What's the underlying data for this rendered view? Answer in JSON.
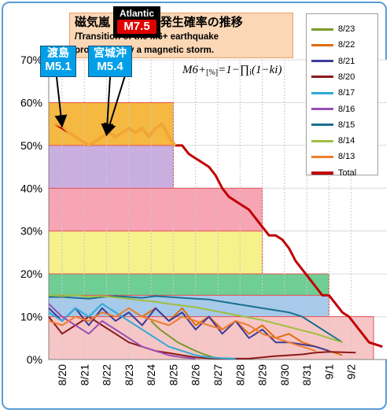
{
  "title": {
    "jp": "磁気嵐 M6+地震発生確率の推移",
    "en_line1": "/Transition of the M6+ earthquake",
    "en_line2": "probability by a magnetic storm."
  },
  "formula": {
    "lhs": "M6+",
    "unit": "[%]",
    "rhs": "=1−∏",
    "sub_i": "i",
    "tail": "(1−ki)"
  },
  "callouts": [
    {
      "label": "渡島",
      "magnitude": "M5.1",
      "date": "8/20",
      "y": 54.5
    },
    {
      "label": "宮城沖",
      "magnitude": "M5.4",
      "date": "8/22",
      "y": 52.5
    },
    {
      "label": "Atlantic",
      "magnitude": "M7.5",
      "date": "8/22",
      "y": 52.5
    }
  ],
  "chart_data": {
    "type": "line",
    "title": "磁気嵐 M6+地震発生確率の推移 /Transition of the M6+ earthquake probability by a magnetic storm.",
    "x_tick_labels": [
      "8/20",
      "8/21",
      "8/22",
      "8/23",
      "8/24",
      "8/25",
      "8/26",
      "8/27",
      "8/28",
      "8/29",
      "8/30",
      "8/31",
      "9/1",
      "9/2"
    ],
    "y_tick_labels": [
      "0%",
      "10%",
      "20%",
      "30%",
      "40%",
      "50%",
      "60%",
      "70%"
    ],
    "ylim": [
      0,
      70
    ],
    "xlim_days_from_8_20": [
      -0.6,
      14.6
    ],
    "grid": true,
    "legend_position": "top-right",
    "bands": [
      {
        "from": "8/19",
        "to": "8/25",
        "value": 60,
        "color": "#f5b942"
      },
      {
        "from": "8/19",
        "to": "8/25",
        "value": 50,
        "color": "#c9aee0"
      },
      {
        "from": "8/19",
        "to": "8/29",
        "value": 40,
        "color": "#f7a4b4"
      },
      {
        "from": "8/19",
        "to": "8/29",
        "value": 30,
        "color": "#f5f28c"
      },
      {
        "from": "8/19",
        "to": "9/1",
        "value": 20,
        "color": "#6fce93"
      },
      {
        "from": "8/19",
        "to": "9/1",
        "value": 15,
        "color": "#a7c9ea"
      },
      {
        "from": "8/19",
        "to": "9/3",
        "value": 10,
        "color": "#f6c6c6"
      }
    ],
    "series": [
      {
        "name": "8/23",
        "color": "#7a9a2c",
        "x": [
          4.0,
          4.4,
          4.8,
          5.2,
          5.6,
          6.0,
          6.4,
          6.8,
          7.2
        ],
        "y": [
          9,
          7,
          5.5,
          4,
          3,
          2,
          1.2,
          0.5,
          0.2
        ]
      },
      {
        "name": "8/22",
        "color": "#e26b0a",
        "x": [
          3.0,
          3.6,
          4.2,
          4.8,
          5.4,
          6.0,
          6.6,
          7.2,
          7.8,
          8.4,
          9.0,
          9.6,
          10.2,
          10.8,
          11.4,
          12.0,
          12.6
        ],
        "y": [
          12,
          10,
          12,
          9,
          12,
          8,
          10,
          7,
          9,
          6,
          8,
          5,
          6,
          4,
          3,
          2,
          1
        ]
      },
      {
        "name": "8/21",
        "color": "#3c3c9a",
        "x": [
          -0.6,
          0.0,
          0.6,
          1.2,
          1.8,
          2.4,
          3.0,
          3.6,
          4.2,
          4.8,
          5.4,
          6.0,
          6.6,
          7.2,
          7.8,
          8.4,
          9.0,
          9.6,
          10.2,
          10.8,
          11.4,
          12.0
        ],
        "y": [
          12,
          9,
          12,
          8,
          12,
          9,
          11,
          8,
          12,
          9,
          11,
          7,
          10,
          6,
          9,
          5,
          7,
          4,
          4,
          3.5,
          3,
          2
        ]
      },
      {
        "name": "8/20",
        "color": "#8b1a1a",
        "x": [
          -0.6,
          0.0,
          0.6,
          1.2,
          1.8,
          2.4,
          3.0,
          3.6,
          4.2,
          4.8,
          5.4,
          6.0,
          6.6,
          7.2,
          7.8,
          8.4,
          9.0,
          9.6,
          10.2,
          10.8,
          11.4,
          12.0,
          12.6,
          13.2
        ],
        "y": [
          10,
          6,
          8,
          10,
          8,
          6,
          4,
          3,
          2,
          1.5,
          1,
          0.5,
          0.3,
          0.2,
          0.2,
          0.2,
          0.5,
          0.8,
          1,
          1.2,
          1.6,
          1.8,
          1.7,
          1.6
        ]
      },
      {
        "name": "8/17",
        "color": "#2eaad8",
        "x": [
          -0.6,
          0.0,
          0.6,
          1.2,
          1.8,
          2.4,
          3.0,
          3.6,
          4.2,
          4.8,
          5.4,
          6.0,
          6.6,
          7.2,
          7.8
        ],
        "y": [
          11,
          9,
          12,
          10,
          13,
          11,
          9,
          7,
          5,
          3,
          2,
          1,
          0.5,
          0.3,
          0.2
        ]
      },
      {
        "name": "8/16",
        "color": "#9a4fb5",
        "x": [
          -0.6,
          0.0,
          0.6,
          1.2,
          1.8,
          2.4,
          3.0,
          3.6,
          4.2,
          4.8,
          5.4,
          6.0
        ],
        "y": [
          13,
          10,
          8,
          6,
          9,
          7,
          5,
          3,
          2,
          1,
          0.5,
          0.2
        ]
      },
      {
        "name": "8/15",
        "color": "#1a7090",
        "x": [
          -0.6,
          0.0,
          0.6,
          1.2,
          1.8,
          2.4,
          3.0,
          3.6,
          4.2,
          4.8,
          5.4,
          6.0,
          6.6,
          7.2,
          7.8,
          8.4,
          9.0,
          9.6,
          10.2,
          10.8,
          11.4,
          12.0,
          12.6
        ],
        "y": [
          14.6,
          14.6,
          14.4,
          14.2,
          14.6,
          14.8,
          14.6,
          14.4,
          14.8,
          14.6,
          14.4,
          14.2,
          14.0,
          13.5,
          13.0,
          12.5,
          12.0,
          11.5,
          11.0,
          10.0,
          8.0,
          6.0,
          4.0
        ]
      },
      {
        "name": "8/14",
        "color": "#9fbf3f",
        "x": [
          -0.6,
          0.0,
          0.6,
          1.2,
          1.8,
          2.4,
          3.0,
          3.6,
          4.2,
          4.8,
          5.4,
          6.0,
          6.6,
          7.2,
          7.8,
          8.4,
          9.0,
          9.6,
          10.2,
          10.8,
          11.4,
          12.0,
          12.6
        ],
        "y": [
          15,
          14.8,
          15,
          14.6,
          14.8,
          14.5,
          14.2,
          13.8,
          13.5,
          13.0,
          12.6,
          12.2,
          11.6,
          11.0,
          10.4,
          9.8,
          9.2,
          8.4,
          7.6,
          6.8,
          6.0,
          5.0,
          4.0
        ]
      },
      {
        "name": "8/13",
        "color": "#ed7d31",
        "x": [
          -0.6,
          0.0,
          0.6,
          1.2,
          1.8,
          2.4,
          3.0,
          3.6,
          4.2,
          4.8,
          5.4,
          6.0,
          6.6,
          7.2,
          7.8,
          8.4,
          9.0,
          9.6,
          10.2,
          10.8,
          11.4
        ],
        "y": [
          9,
          8,
          10,
          9,
          11,
          10,
          12,
          10,
          9,
          8,
          10,
          9,
          8,
          7,
          9,
          8,
          6,
          5,
          4,
          3,
          2
        ]
      },
      {
        "name": "Total",
        "color": "#c00000",
        "x": [
          -0.3,
          0.0,
          0.3,
          0.6,
          0.9,
          1.2,
          1.5,
          1.8,
          2.1,
          2.4,
          2.7,
          3.0,
          3.3,
          3.6,
          3.9,
          4.2,
          4.5,
          4.8,
          5.1,
          5.4,
          5.7,
          6.0,
          6.3,
          6.6,
          6.9,
          7.2,
          7.5,
          7.8,
          8.1,
          8.4,
          8.7,
          9.0,
          9.3,
          9.6,
          9.9,
          10.2,
          10.5,
          10.8,
          11.1,
          11.4,
          11.7,
          12.0,
          12.3,
          12.6,
          12.9,
          13.2,
          13.5,
          13.8,
          14.1,
          14.4
        ],
        "y": [
          55,
          54,
          53,
          52,
          51,
          50,
          51,
          52,
          53,
          52,
          53,
          54,
          53,
          54,
          52,
          54,
          55,
          52,
          50,
          50,
          48,
          47,
          46,
          45,
          43,
          40,
          38,
          37,
          36,
          35,
          33,
          31,
          29,
          29,
          28,
          26,
          23,
          21,
          19,
          17,
          15,
          15,
          13,
          11,
          10,
          8,
          6,
          4,
          3.5,
          3
        ]
      },
      {
        "name": "",
        "color": "#f3a838",
        "x": [
          -0.3,
          0.0,
          0.3,
          0.6,
          0.9,
          1.2,
          1.5,
          1.8,
          2.1,
          2.4,
          2.7,
          3.0,
          3.3,
          3.6,
          3.9,
          4.2,
          4.5,
          4.8,
          5.1
        ],
        "y": [
          55,
          54.5,
          53,
          52,
          51,
          50,
          51,
          52,
          53,
          52,
          53,
          54,
          53,
          54,
          52,
          54,
          55,
          52,
          50
        ]
      }
    ]
  }
}
